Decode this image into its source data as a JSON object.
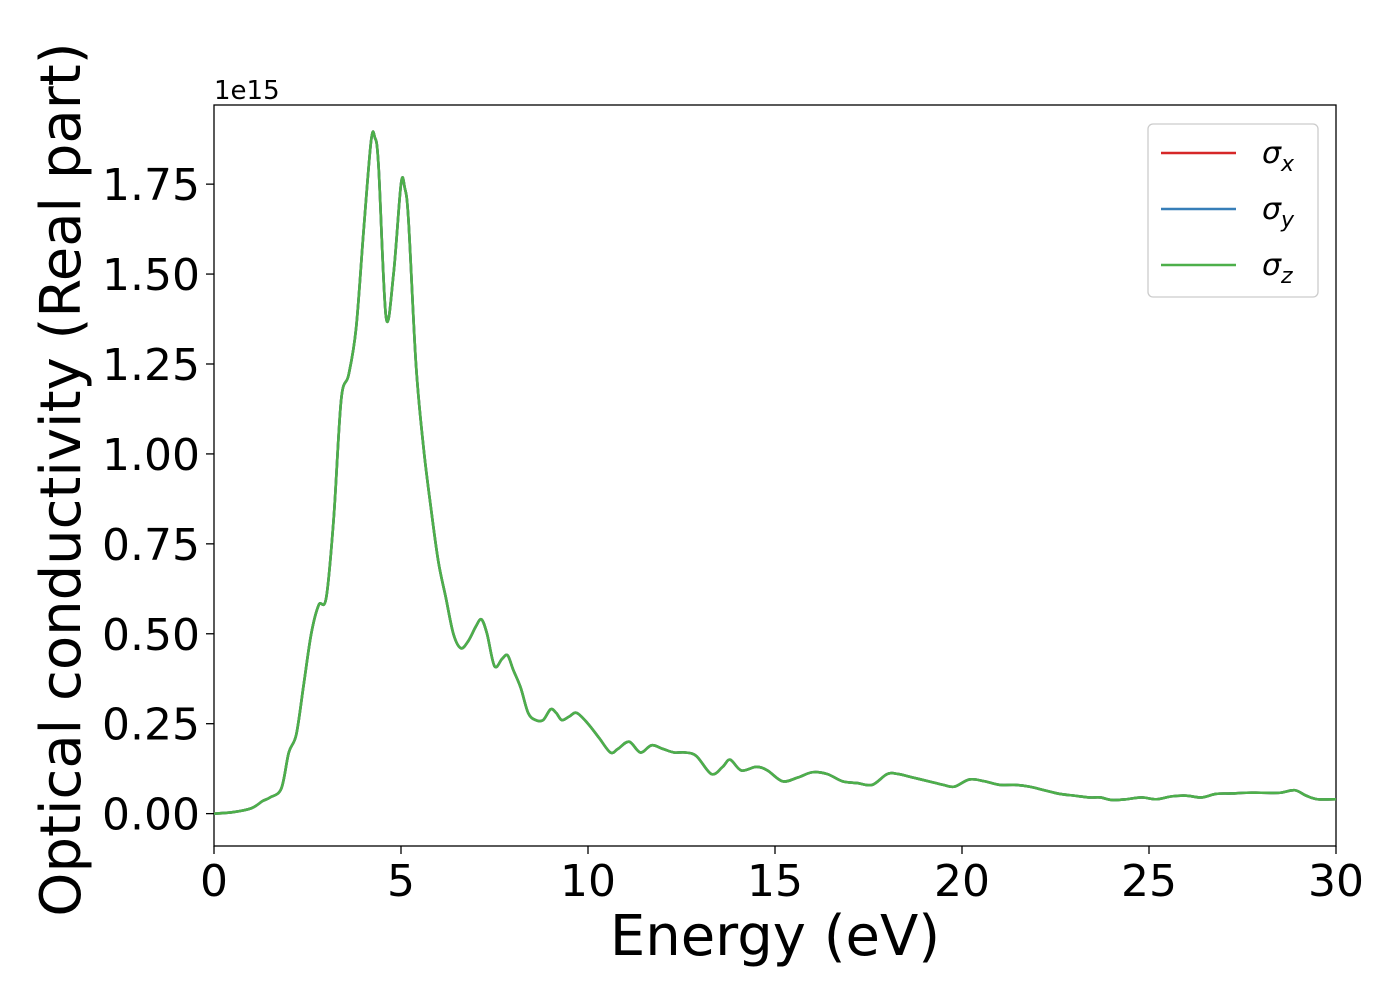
{
  "chart_data": {
    "type": "line",
    "xlabel": "Energy (eV)",
    "ylabel": "Optical conductivity (Real part)",
    "y_offset_label": "1e15",
    "xlim": [
      0,
      30
    ],
    "ylim": [
      -0.09,
      1.97
    ],
    "x_ticks": [
      {
        "value": 0,
        "label": "0"
      },
      {
        "value": 5,
        "label": "5"
      },
      {
        "value": 10,
        "label": "10"
      },
      {
        "value": 15,
        "label": "15"
      },
      {
        "value": 20,
        "label": "20"
      },
      {
        "value": 25,
        "label": "25"
      },
      {
        "value": 30,
        "label": "30"
      }
    ],
    "y_ticks": [
      {
        "value": 0.0,
        "label": "0.00"
      },
      {
        "value": 0.25,
        "label": "0.25"
      },
      {
        "value": 0.5,
        "label": "0.50"
      },
      {
        "value": 0.75,
        "label": "0.75"
      },
      {
        "value": 1.0,
        "label": "1.00"
      },
      {
        "value": 1.25,
        "label": "1.25"
      },
      {
        "value": 1.5,
        "label": "1.50"
      },
      {
        "value": 1.75,
        "label": "1.75"
      }
    ],
    "grid": false,
    "legend_position": "top-right",
    "series": [
      {
        "name": "σ",
        "subscript": "x",
        "color": "#d62728"
      },
      {
        "name": "σ",
        "subscript": "y",
        "color": "#377eb8"
      },
      {
        "name": "σ",
        "subscript": "z",
        "color": "#4daf4a"
      }
    ],
    "x": [
      0,
      0.5,
      1.0,
      1.3,
      1.5,
      1.8,
      2.0,
      2.2,
      2.4,
      2.6,
      2.8,
      3.0,
      3.2,
      3.4,
      3.6,
      3.8,
      4.0,
      4.2,
      4.3,
      4.4,
      4.6,
      4.8,
      5.0,
      5.1,
      5.2,
      5.4,
      5.6,
      5.8,
      6.0,
      6.2,
      6.4,
      6.6,
      6.8,
      7.0,
      7.15,
      7.3,
      7.5,
      7.7,
      7.85,
      8.0,
      8.2,
      8.4,
      8.6,
      8.8,
      9.0,
      9.15,
      9.3,
      9.5,
      9.7,
      10.0,
      10.3,
      10.6,
      10.8,
      11.1,
      11.4,
      11.7,
      12.0,
      12.3,
      12.6,
      12.9,
      13.3,
      13.6,
      13.8,
      14.1,
      14.5,
      14.8,
      15.2,
      15.6,
      16.0,
      16.4,
      16.8,
      17.2,
      17.6,
      18.0,
      18.3,
      18.7,
      19.1,
      19.5,
      19.8,
      20.2,
      20.6,
      21.0,
      21.4,
      21.8,
      22.2,
      22.6,
      23.0,
      23.4,
      23.7,
      24.0,
      24.4,
      24.8,
      25.2,
      25.6,
      26.0,
      26.4,
      26.8,
      27.2,
      27.6,
      28.0,
      28.5,
      28.9,
      29.2,
      29.5,
      30.0
    ],
    "values": [
      0.0,
      0.004,
      0.015,
      0.035,
      0.045,
      0.07,
      0.17,
      0.22,
      0.36,
      0.5,
      0.58,
      0.6,
      0.82,
      1.15,
      1.22,
      1.35,
      1.62,
      1.87,
      1.88,
      1.8,
      1.38,
      1.5,
      1.75,
      1.74,
      1.65,
      1.25,
      1.02,
      0.85,
      0.7,
      0.6,
      0.5,
      0.46,
      0.48,
      0.52,
      0.54,
      0.5,
      0.41,
      0.43,
      0.44,
      0.4,
      0.35,
      0.28,
      0.26,
      0.26,
      0.29,
      0.28,
      0.26,
      0.27,
      0.28,
      0.25,
      0.21,
      0.17,
      0.18,
      0.2,
      0.17,
      0.19,
      0.18,
      0.17,
      0.17,
      0.16,
      0.11,
      0.13,
      0.15,
      0.12,
      0.13,
      0.12,
      0.09,
      0.1,
      0.115,
      0.11,
      0.09,
      0.085,
      0.08,
      0.11,
      0.11,
      0.1,
      0.09,
      0.08,
      0.075,
      0.095,
      0.09,
      0.08,
      0.08,
      0.075,
      0.065,
      0.055,
      0.05,
      0.045,
      0.045,
      0.038,
      0.04,
      0.045,
      0.04,
      0.048,
      0.05,
      0.045,
      0.055,
      0.056,
      0.058,
      0.058,
      0.058,
      0.065,
      0.05,
      0.04,
      0.04
    ]
  }
}
